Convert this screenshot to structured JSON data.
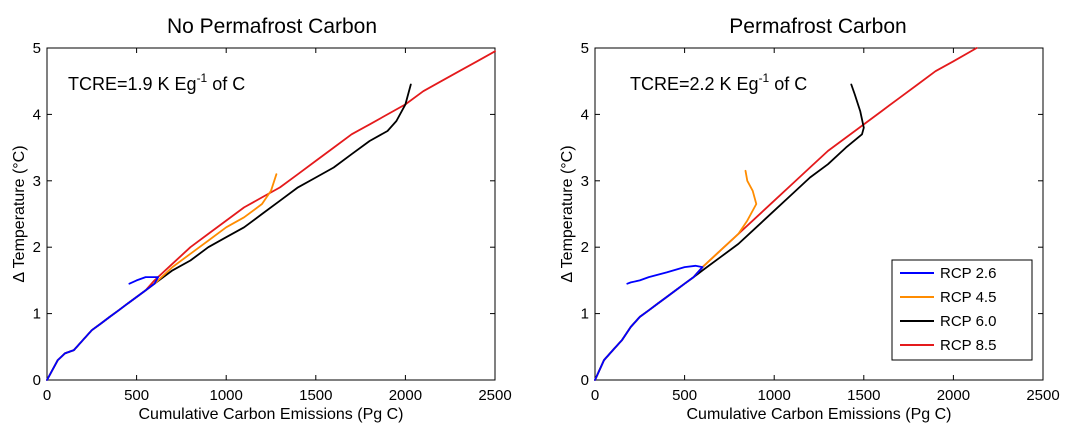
{
  "chart_data": [
    {
      "type": "line",
      "title": "No Permafrost Carbon",
      "xlabel": "Cumulative Carbon Emissions (Pg C)",
      "ylabel": "Δ Temperature (°C)",
      "xlim": [
        0,
        2500
      ],
      "ylim": [
        0,
        5
      ],
      "xticks": [
        "0",
        "500",
        "1000",
        "1500",
        "2000",
        "2500"
      ],
      "yticks": [
        "0",
        "1",
        "2",
        "3",
        "4",
        "5"
      ],
      "grid": false,
      "annotation": {
        "prefix": "TCRE=1.9 K Eg",
        "sup": "-1",
        "suffix": " of C"
      },
      "series": [
        {
          "name": "RCP 8.5",
          "color": "#e41a1c",
          "x": [
            0,
            60,
            100,
            150,
            200,
            250,
            300,
            350,
            400,
            450,
            500,
            550,
            600,
            700,
            800,
            900,
            1000,
            1100,
            1200,
            1300,
            1400,
            1500,
            1600,
            1700,
            1800,
            1900,
            2000,
            2100,
            2200,
            2300,
            2400,
            2500
          ],
          "y": [
            0,
            0.3,
            0.4,
            0.45,
            0.6,
            0.75,
            0.85,
            0.95,
            1.05,
            1.15,
            1.25,
            1.35,
            1.5,
            1.75,
            2.0,
            2.2,
            2.4,
            2.6,
            2.75,
            2.9,
            3.1,
            3.3,
            3.5,
            3.7,
            3.85,
            4.0,
            4.15,
            4.35,
            4.5,
            4.65,
            4.8,
            4.95
          ]
        },
        {
          "name": "RCP 6.0",
          "color": "#000000",
          "x": [
            0,
            60,
            100,
            150,
            200,
            250,
            300,
            350,
            400,
            450,
            500,
            550,
            600,
            700,
            800,
            900,
            1000,
            1100,
            1200,
            1300,
            1400,
            1500,
            1600,
            1700,
            1800,
            1900,
            1950,
            2000,
            2030
          ],
          "y": [
            0,
            0.3,
            0.4,
            0.45,
            0.6,
            0.75,
            0.85,
            0.95,
            1.05,
            1.15,
            1.25,
            1.35,
            1.45,
            1.65,
            1.8,
            2.0,
            2.15,
            2.3,
            2.5,
            2.7,
            2.9,
            3.05,
            3.2,
            3.4,
            3.6,
            3.75,
            3.9,
            4.15,
            4.45
          ]
        },
        {
          "name": "RCP 4.5",
          "color": "#ff8c00",
          "x": [
            0,
            60,
            100,
            150,
            200,
            250,
            300,
            350,
            400,
            450,
            500,
            550,
            600,
            700,
            800,
            900,
            1000,
            1100,
            1200,
            1250,
            1280
          ],
          "y": [
            0,
            0.3,
            0.4,
            0.45,
            0.6,
            0.75,
            0.85,
            0.95,
            1.05,
            1.15,
            1.25,
            1.35,
            1.45,
            1.7,
            1.9,
            2.1,
            2.3,
            2.45,
            2.65,
            2.85,
            3.1
          ]
        },
        {
          "name": "RCP 2.6",
          "color": "#0000ff",
          "x": [
            0,
            60,
            100,
            150,
            200,
            250,
            300,
            350,
            400,
            450,
            500,
            550,
            600,
            620,
            550,
            500,
            460
          ],
          "y": [
            0,
            0.3,
            0.4,
            0.45,
            0.6,
            0.75,
            0.85,
            0.95,
            1.05,
            1.15,
            1.25,
            1.35,
            1.45,
            1.55,
            1.55,
            1.5,
            1.45
          ]
        }
      ]
    },
    {
      "type": "line",
      "title": "Permafrost Carbon",
      "xlabel": "Cumulative Carbon Emissions (Pg C)",
      "ylabel": "Δ Temperature (°C)",
      "xlim": [
        0,
        2500
      ],
      "ylim": [
        0,
        5
      ],
      "xticks": [
        "0",
        "500",
        "1000",
        "1500",
        "2000",
        "2500"
      ],
      "yticks": [
        "0",
        "1",
        "2",
        "3",
        "4",
        "5"
      ],
      "grid": false,
      "annotation": {
        "prefix": "TCRE=2.2 K Eg",
        "sup": "-1",
        "suffix": " of C"
      },
      "legend": {
        "placement": "lower-right",
        "entries": [
          "RCP 2.6",
          "RCP 4.5",
          "RCP 6.0",
          "RCP 8.5"
        ]
      },
      "series": [
        {
          "name": "RCP 8.5",
          "color": "#e41a1c",
          "x": [
            0,
            50,
            100,
            150,
            200,
            250,
            300,
            350,
            400,
            450,
            500,
            550,
            600,
            700,
            800,
            900,
            1000,
            1100,
            1200,
            1300,
            1400,
            1500,
            1600,
            1700,
            1800,
            1900,
            2000,
            2130
          ],
          "y": [
            0,
            0.3,
            0.45,
            0.6,
            0.8,
            0.95,
            1.05,
            1.15,
            1.25,
            1.35,
            1.45,
            1.55,
            1.7,
            1.95,
            2.2,
            2.45,
            2.7,
            2.95,
            3.2,
            3.45,
            3.65,
            3.85,
            4.05,
            4.25,
            4.45,
            4.65,
            4.8,
            5.0
          ]
        },
        {
          "name": "RCP 6.0",
          "color": "#000000",
          "x": [
            0,
            50,
            100,
            150,
            200,
            250,
            300,
            350,
            400,
            450,
            500,
            550,
            600,
            700,
            800,
            900,
            1000,
            1100,
            1200,
            1300,
            1400,
            1490,
            1500,
            1480,
            1450,
            1430
          ],
          "y": [
            0,
            0.3,
            0.45,
            0.6,
            0.8,
            0.95,
            1.05,
            1.15,
            1.25,
            1.35,
            1.45,
            1.55,
            1.65,
            1.85,
            2.05,
            2.3,
            2.55,
            2.8,
            3.05,
            3.25,
            3.5,
            3.7,
            3.8,
            4.05,
            4.3,
            4.45
          ]
        },
        {
          "name": "RCP 4.5",
          "color": "#ff8c00",
          "x": [
            0,
            50,
            100,
            150,
            200,
            250,
            300,
            350,
            400,
            450,
            500,
            550,
            600,
            700,
            800,
            850,
            900,
            880,
            850,
            840
          ],
          "y": [
            0,
            0.3,
            0.45,
            0.6,
            0.8,
            0.95,
            1.05,
            1.15,
            1.25,
            1.35,
            1.45,
            1.55,
            1.7,
            1.95,
            2.2,
            2.4,
            2.65,
            2.85,
            3.0,
            3.15
          ]
        },
        {
          "name": "RCP 2.6",
          "color": "#0000ff",
          "x": [
            0,
            50,
            100,
            150,
            200,
            250,
            300,
            350,
            400,
            450,
            500,
            550,
            600,
            560,
            500,
            400,
            300,
            250,
            200,
            180
          ],
          "y": [
            0,
            0.3,
            0.45,
            0.6,
            0.8,
            0.95,
            1.05,
            1.15,
            1.25,
            1.35,
            1.45,
            1.55,
            1.7,
            1.72,
            1.7,
            1.62,
            1.55,
            1.5,
            1.47,
            1.45
          ]
        }
      ]
    }
  ]
}
